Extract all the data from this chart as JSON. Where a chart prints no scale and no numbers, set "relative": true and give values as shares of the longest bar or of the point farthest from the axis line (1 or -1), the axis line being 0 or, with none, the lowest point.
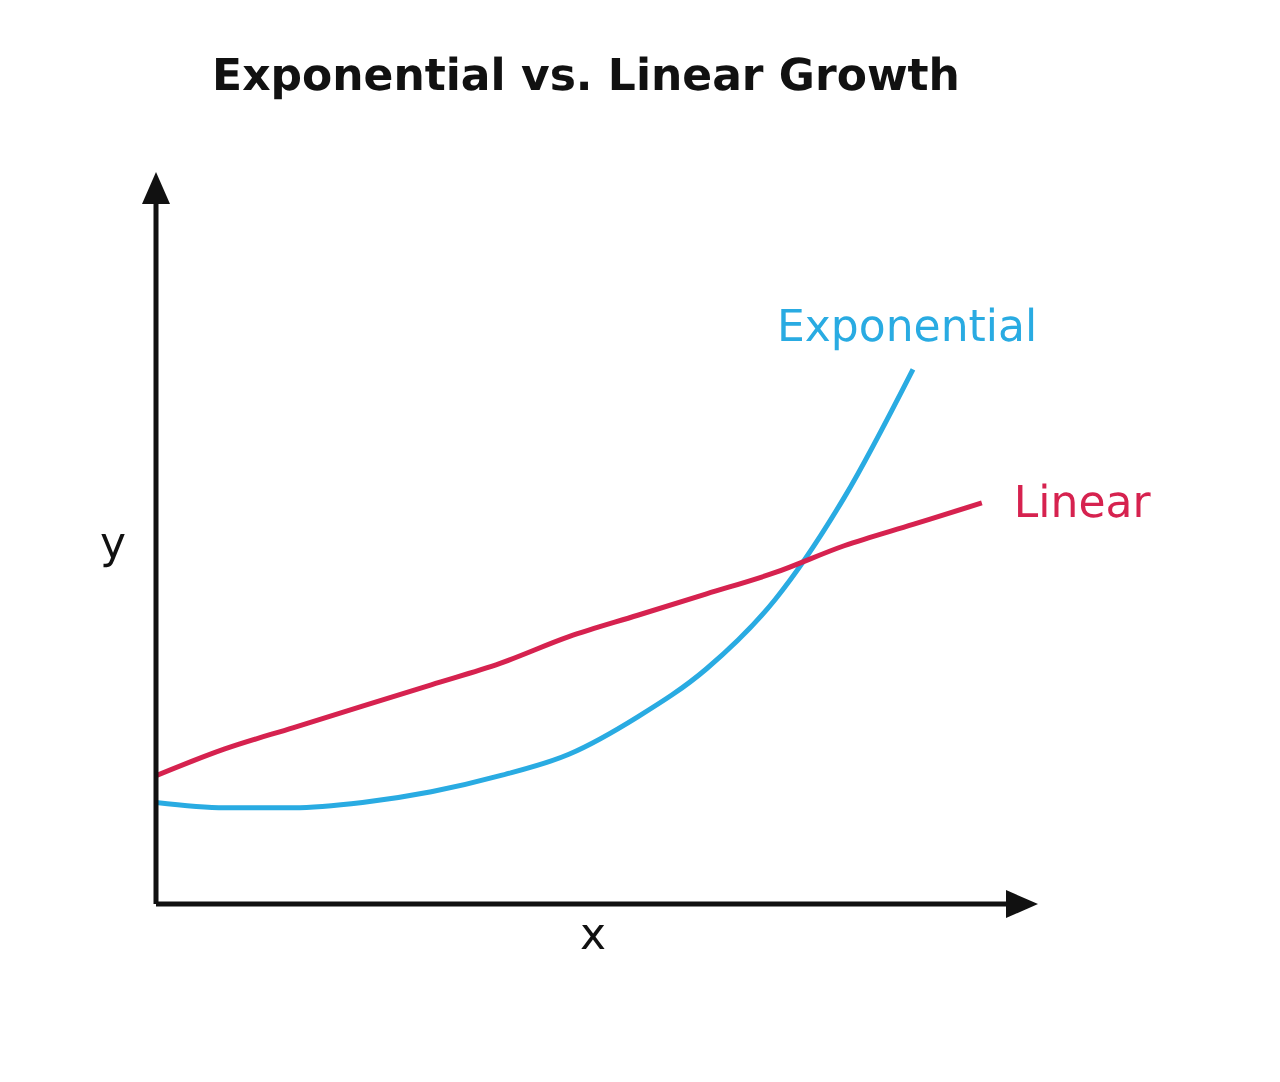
{
  "chart_data": {
    "type": "line",
    "title": "Exponential vs. Linear Growth",
    "xlabel": "x",
    "ylabel": "y",
    "relative": true,
    "tick_labels": false,
    "marker": "none",
    "line_style": "solid",
    "categories": [
      null,
      null,
      null,
      null,
      null,
      null,
      null,
      null,
      null,
      null,
      null,
      null,
      null
    ],
    "series": [
      {
        "name": "Exponential",
        "color": "#29abe2",
        "values": [
          0.19,
          0.18,
          0.18,
          0.19,
          0.21,
          0.24,
          0.28,
          0.35,
          0.44,
          0.57,
          0.76,
          1.0,
          null
        ]
      },
      {
        "name": "Linear",
        "color": "#d6224f",
        "values": [
          0.24,
          0.29,
          0.33,
          0.37,
          0.41,
          0.45,
          0.5,
          0.54,
          0.58,
          0.62,
          0.67,
          0.71,
          0.75
        ]
      }
    ]
  }
}
